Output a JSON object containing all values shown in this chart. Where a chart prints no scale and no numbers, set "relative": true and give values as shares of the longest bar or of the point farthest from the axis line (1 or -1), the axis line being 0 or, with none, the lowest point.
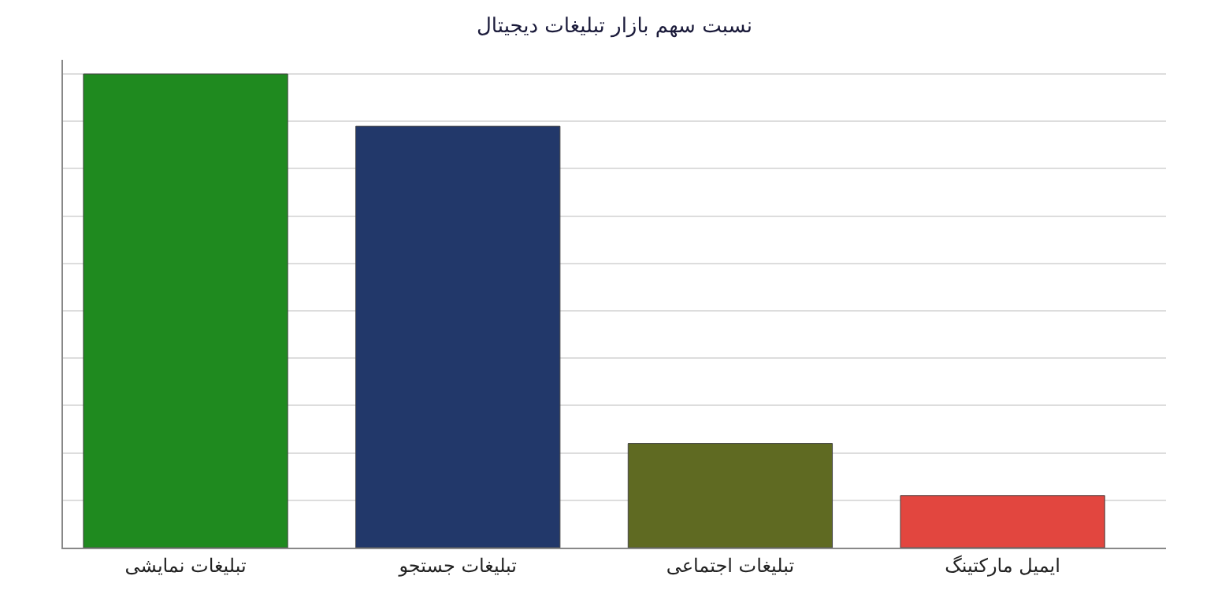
{
  "chart_data": {
    "type": "bar",
    "title": "نسبت سهم بازار تبلیغات دیجیتال",
    "categories": [
      "تبلیغات نمایشی",
      "تبلیغات جستجو",
      "تبلیغات اجتماعی",
      "ایمیل مارکتینگ"
    ],
    "values": [
      1,
      0.89,
      0.22,
      0.11
    ],
    "colors": [
      "#1f8a1f",
      "#22386a",
      "#5f6a22",
      "#e2463f"
    ],
    "relative": true,
    "grid": "y"
  }
}
